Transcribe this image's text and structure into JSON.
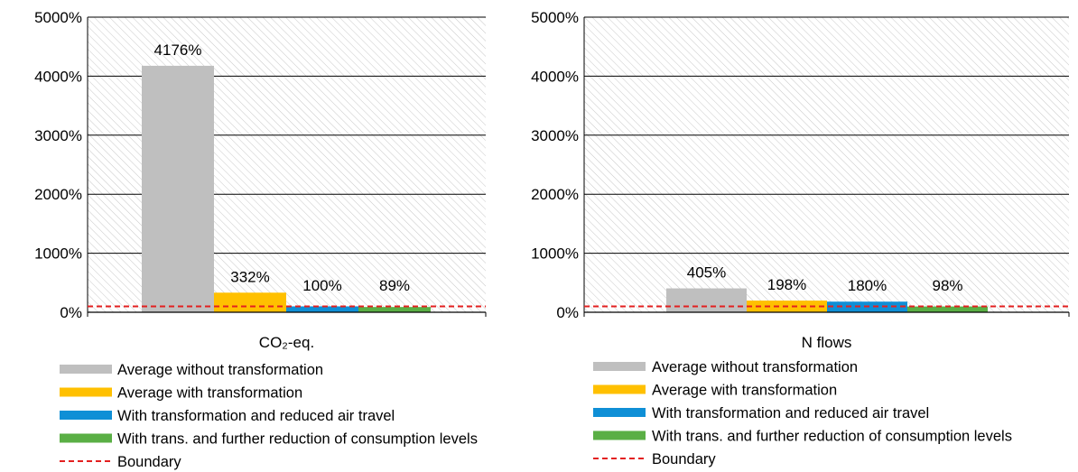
{
  "chart_data": [
    {
      "type": "bar",
      "categories": [
        "CO₂-eq."
      ],
      "series": [
        {
          "name": "Average without transformation",
          "values": [
            4176
          ],
          "label": "4176%",
          "color": "#BFBFBF"
        },
        {
          "name": "Average with transformation",
          "values": [
            332
          ],
          "label": "332%",
          "color": "#FFC000"
        },
        {
          "name": "With transformation and reduced air travel",
          "values": [
            100
          ],
          "label": "100%",
          "color": "#0F8FD6"
        },
        {
          "name": "With trans. and further reduction of consumption levels",
          "values": [
            89
          ],
          "label": "89%",
          "color": "#5AAF45"
        }
      ],
      "boundary": {
        "name": "Boundary",
        "value": 100,
        "color": "#E32020"
      },
      "ylim": [
        0,
        5000
      ],
      "yticks": [
        0,
        1000,
        2000,
        3000,
        4000,
        5000
      ],
      "ytick_labels": [
        "0%",
        "1000%",
        "2000%",
        "3000%",
        "4000%",
        "5000%"
      ],
      "grid": true,
      "legend_position": "bottom",
      "title": "",
      "xlabel": "",
      "ylabel": ""
    },
    {
      "type": "bar",
      "categories": [
        "N flows"
      ],
      "series": [
        {
          "name": "Average without transformation",
          "values": [
            405
          ],
          "label": "405%",
          "color": "#BFBFBF"
        },
        {
          "name": "Average with transformation",
          "values": [
            198
          ],
          "label": "198%",
          "color": "#FFC000"
        },
        {
          "name": "With transformation and reduced air travel",
          "values": [
            180
          ],
          "label": "180%",
          "color": "#0F8FD6"
        },
        {
          "name": "With trans. and further reduction of consumption levels",
          "values": [
            98
          ],
          "label": "98%",
          "color": "#5AAF45"
        }
      ],
      "boundary": {
        "name": "Boundary",
        "value": 100,
        "color": "#E32020"
      },
      "ylim": [
        0,
        5000
      ],
      "yticks": [
        0,
        1000,
        2000,
        3000,
        4000,
        5000
      ],
      "ytick_labels": [
        "0%",
        "1000%",
        "2000%",
        "3000%",
        "4000%",
        "5000%"
      ],
      "grid": true,
      "legend_position": "bottom",
      "title": "",
      "xlabel": "",
      "ylabel": ""
    }
  ]
}
